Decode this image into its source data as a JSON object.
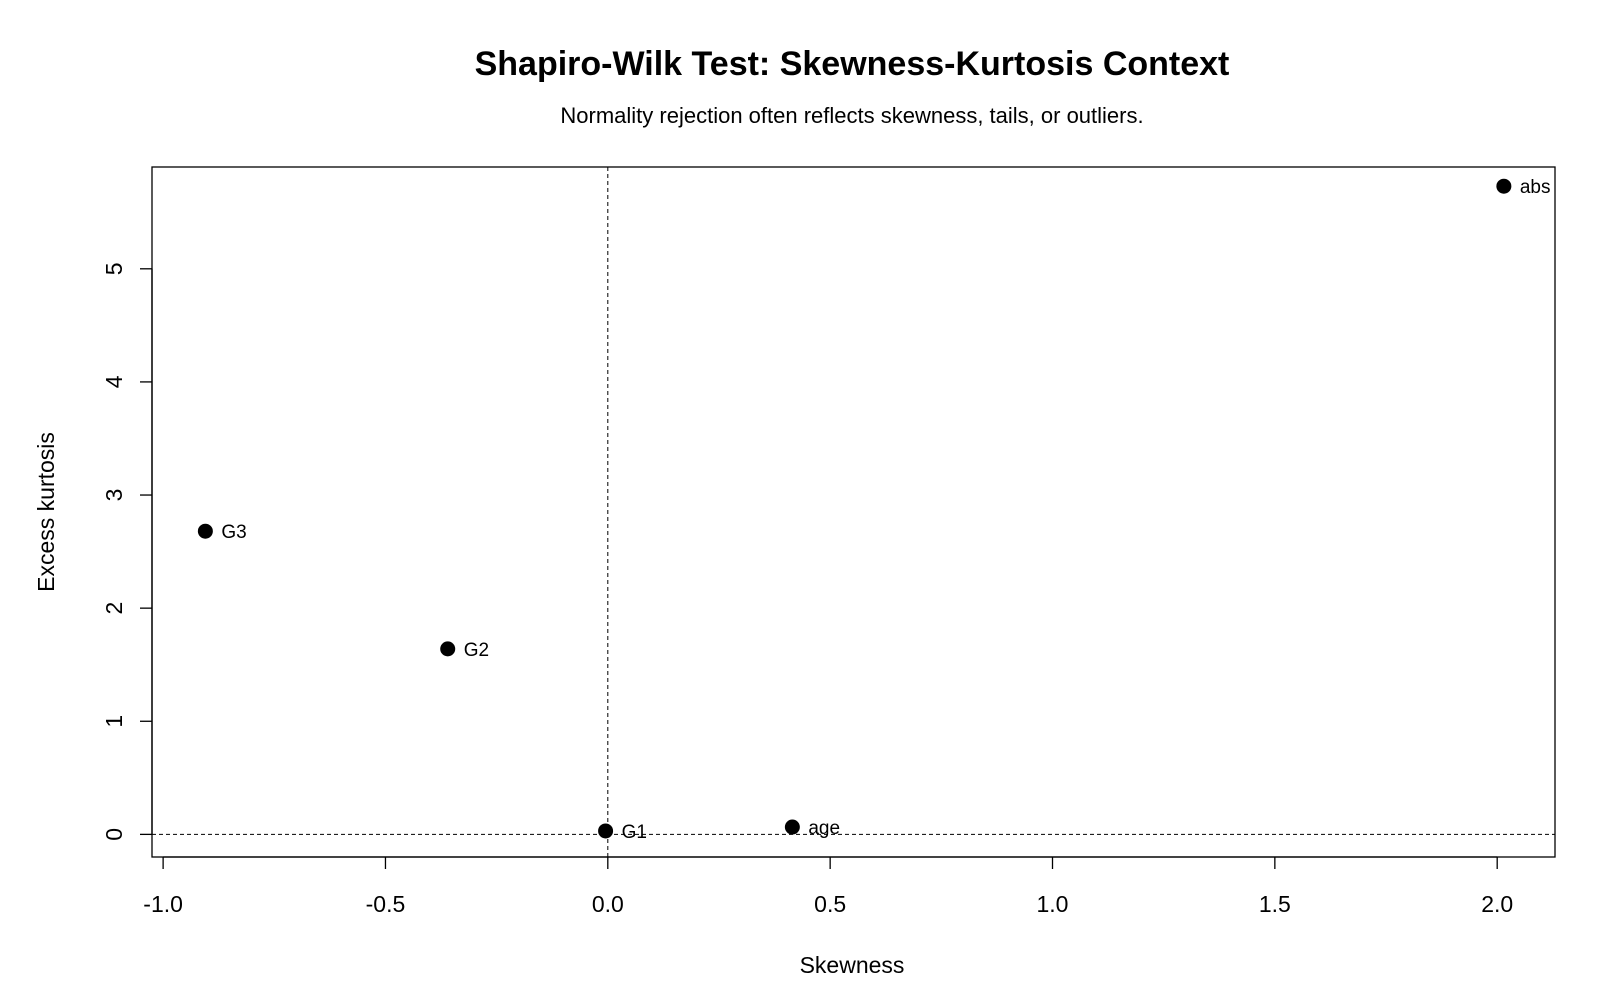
{
  "chart_data": {
    "type": "scatter",
    "title": "Shapiro-Wilk Test: Skewness-Kurtosis Context",
    "subtitle": "Normality rejection often reflects skewness, tails, or outliers.",
    "xlabel": "Skewness",
    "ylabel": "Excess kurtosis",
    "xlim": [
      -1.025,
      2.13
    ],
    "ylim": [
      -0.2,
      5.9
    ],
    "x_ticks": [
      -1.0,
      -0.5,
      0.0,
      0.5,
      1.0,
      1.5,
      2.0
    ],
    "x_tick_labels": [
      "-1.0",
      "-0.5",
      "0.0",
      "0.5",
      "1.0",
      "1.5",
      "2.0"
    ],
    "y_ticks": [
      0,
      1,
      2,
      3,
      4,
      5
    ],
    "y_tick_labels": [
      "0",
      "1",
      "2",
      "3",
      "4",
      "5"
    ],
    "reference_lines": {
      "x": 0,
      "y": 0,
      "style": "dashed"
    },
    "grid": false,
    "marker_color": "#000000",
    "points": [
      {
        "label": "abs",
        "x": 2.015,
        "y": 5.73
      },
      {
        "label": "G3",
        "x": -0.905,
        "y": 2.68
      },
      {
        "label": "G2",
        "x": -0.36,
        "y": 1.64
      },
      {
        "label": "G1",
        "x": -0.005,
        "y": 0.03
      },
      {
        "label": "age",
        "x": 0.415,
        "y": 0.065
      }
    ]
  }
}
